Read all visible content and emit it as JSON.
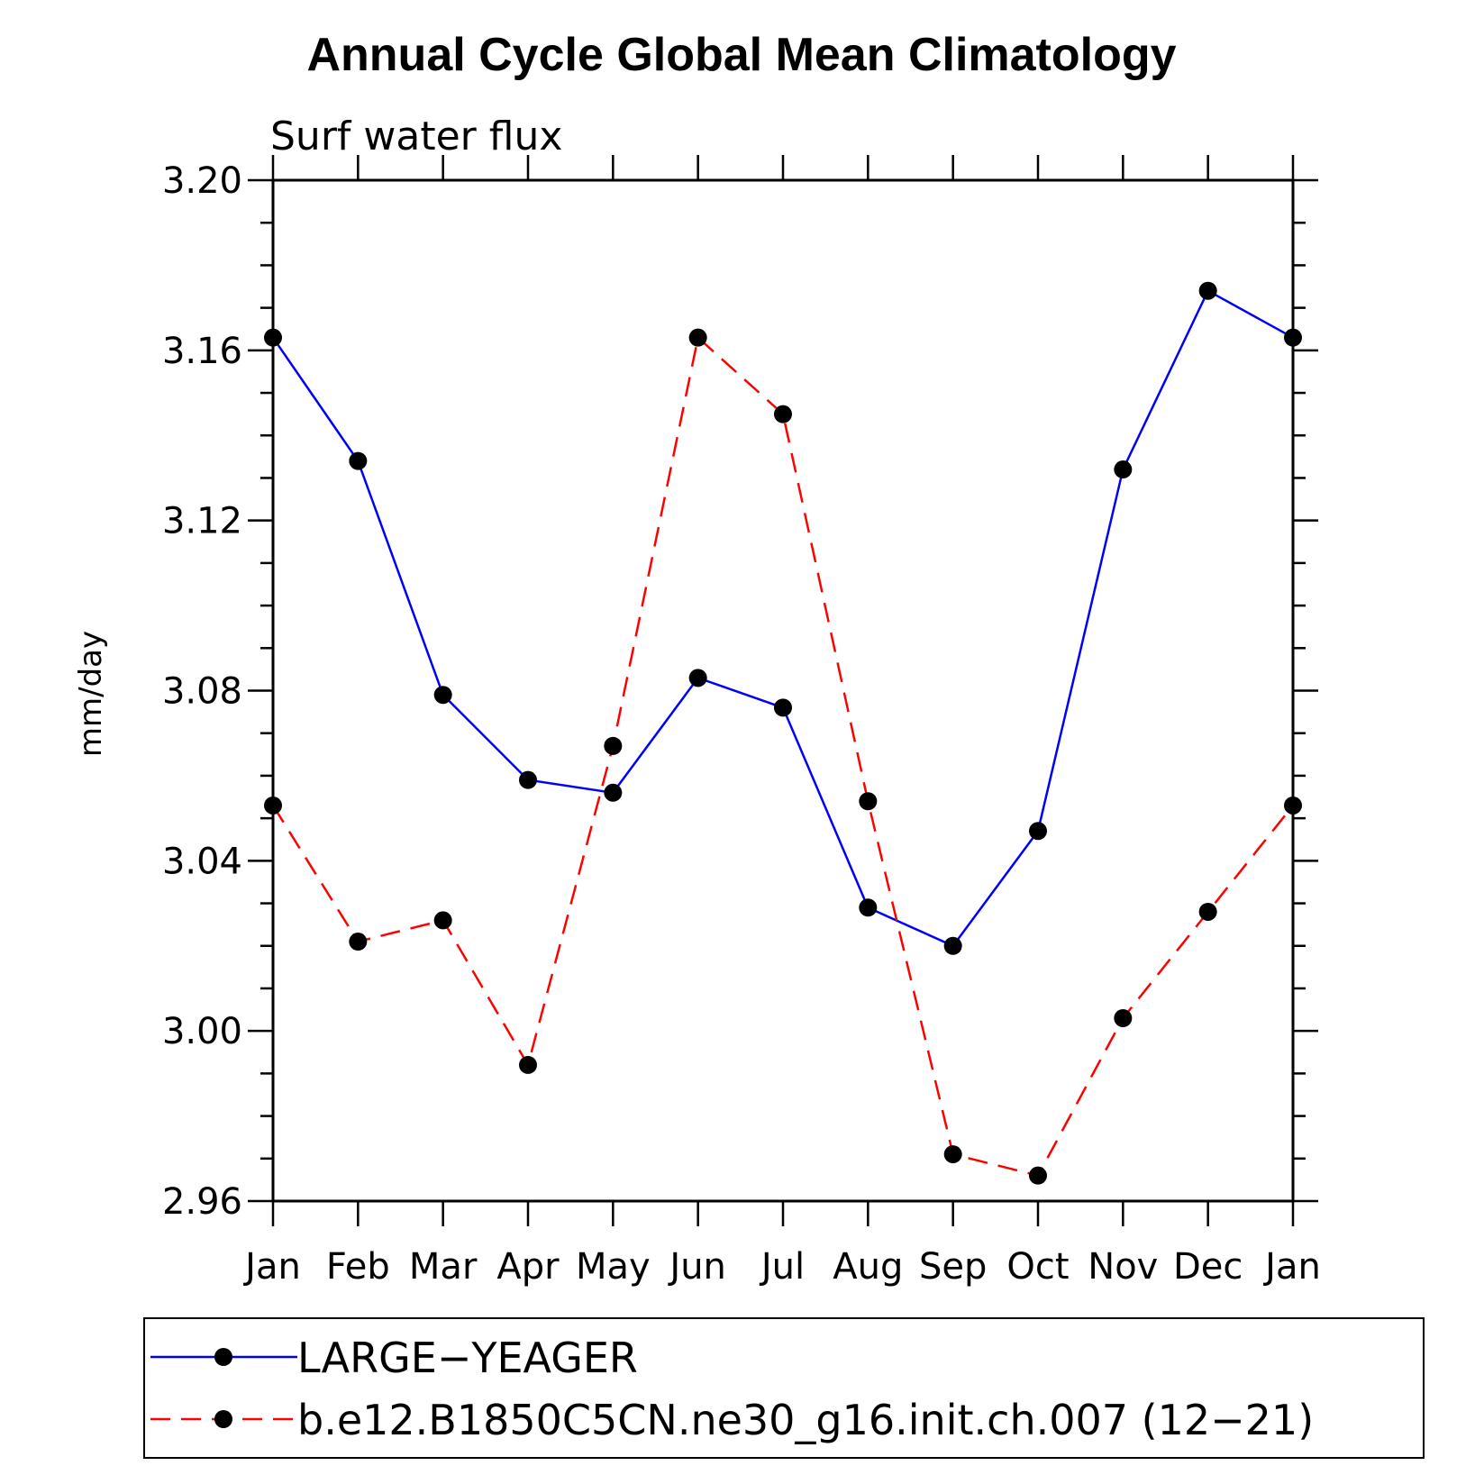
{
  "chart_data": {
    "type": "line",
    "title": "Annual Cycle Global Mean Climatology",
    "subtitle": "Surf water flux",
    "xlabel": "",
    "ylabel": "mm/day",
    "categories": [
      "Jan",
      "Feb",
      "Mar",
      "Apr",
      "May",
      "Jun",
      "Jul",
      "Aug",
      "Sep",
      "Oct",
      "Nov",
      "Dec",
      "Jan"
    ],
    "ylim": [
      2.96,
      3.2
    ],
    "yticks": [
      "2.96",
      "3.00",
      "3.04",
      "3.08",
      "3.12",
      "3.16",
      "3.20"
    ],
    "grid": false,
    "legend_position": "bottom",
    "series": [
      {
        "name": "LARGE−YEAGER",
        "color": "#0000ff",
        "style": "solid",
        "marker": "circle",
        "values": [
          3.163,
          3.134,
          3.079,
          3.059,
          3.056,
          3.083,
          3.076,
          3.029,
          3.02,
          3.047,
          3.132,
          3.174,
          3.163
        ]
      },
      {
        "name": "b.e12.B1850C5CN.ne30_g16.init.ch.007 (12−21)",
        "color": "#ff0000",
        "style": "dashed",
        "marker": "circle",
        "values": [
          3.053,
          3.021,
          3.026,
          2.992,
          3.067,
          3.163,
          3.145,
          3.054,
          2.971,
          2.966,
          3.003,
          3.028,
          3.053
        ]
      }
    ]
  }
}
